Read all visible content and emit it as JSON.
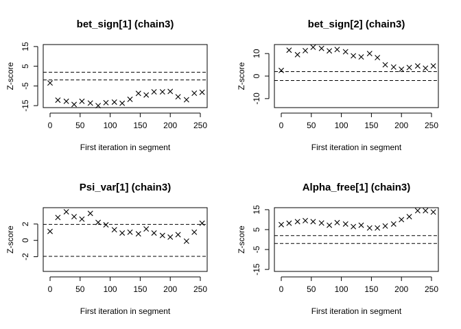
{
  "chart_data": [
    {
      "type": "scatter",
      "title": "bet_sign[1] (chain3)",
      "xlabel": "First iteration in segment",
      "ylabel": "Z-score",
      "xlim": [
        0,
        250
      ],
      "ylim": [
        -16,
        16
      ],
      "xticks": [
        0,
        50,
        100,
        150,
        200,
        250
      ],
      "yticks": [
        -15,
        -5,
        5,
        15
      ],
      "reference_lines": [
        1.96,
        -1.96
      ],
      "x": [
        0,
        13,
        27,
        40,
        53,
        67,
        80,
        93,
        107,
        120,
        133,
        147,
        160,
        173,
        187,
        200,
        213,
        227,
        240,
        253
      ],
      "y": [
        -3.5,
        -12.2,
        -12.8,
        -14.4,
        -12.8,
        -13.7,
        -15.0,
        -13.5,
        -13.2,
        -13.8,
        -11.8,
        -8.8,
        -9.6,
        -8.0,
        -8.0,
        -7.8,
        -10.5,
        -12.0,
        -8.7,
        -8.2
      ],
      "marker": "x"
    },
    {
      "type": "scatter",
      "title": "bet_sign[2] (chain3)",
      "xlabel": "First iteration in segment",
      "ylabel": "Z-score",
      "xlim": [
        0,
        250
      ],
      "ylim": [
        -14,
        14
      ],
      "xticks": [
        0,
        50,
        100,
        150,
        200,
        250
      ],
      "yticks": [
        -10,
        0,
        10
      ],
      "reference_lines": [
        1.96,
        -1.96
      ],
      "x": [
        0,
        13,
        27,
        40,
        53,
        67,
        80,
        93,
        107,
        120,
        133,
        147,
        160,
        173,
        187,
        200,
        213,
        227,
        240,
        253
      ],
      "y": [
        2.5,
        11.5,
        9.5,
        11.3,
        12.8,
        12.3,
        11.2,
        11.8,
        10.8,
        9.0,
        8.5,
        10.0,
        8.2,
        5.0,
        4.0,
        3.0,
        3.8,
        4.5,
        3.5,
        4.5
      ],
      "marker": "x"
    },
    {
      "type": "scatter",
      "title": "Psi_var[1] (chain3)",
      "xlabel": "First iteration in segment",
      "ylabel": "Z-score",
      "xlim": [
        0,
        250
      ],
      "ylim": [
        -3.8,
        4.0
      ],
      "xticks": [
        0,
        50,
        100,
        150,
        200,
        250
      ],
      "yticks": [
        -2,
        0,
        2
      ],
      "reference_lines": [
        1.96,
        -1.96
      ],
      "x": [
        0,
        13,
        27,
        40,
        53,
        67,
        80,
        93,
        107,
        120,
        133,
        147,
        160,
        173,
        187,
        200,
        213,
        227,
        240,
        253
      ],
      "y": [
        1.1,
        2.8,
        3.5,
        2.9,
        2.6,
        3.3,
        2.2,
        1.9,
        1.3,
        0.9,
        1.0,
        0.8,
        1.4,
        0.9,
        0.6,
        0.4,
        0.7,
        -0.1,
        1.0,
        2.1
      ],
      "marker": "x"
    },
    {
      "type": "scatter",
      "title": "Alpha_free[1] (chain3)",
      "xlabel": "First iteration in segment",
      "ylabel": "Z-score",
      "xlim": [
        0,
        250
      ],
      "ylim": [
        -16,
        16
      ],
      "xticks": [
        0,
        50,
        100,
        150,
        200,
        250
      ],
      "yticks": [
        -15,
        -5,
        5,
        15
      ],
      "reference_lines": [
        1.96,
        -1.96
      ],
      "x": [
        0,
        13,
        27,
        40,
        53,
        67,
        80,
        93,
        107,
        120,
        133,
        147,
        160,
        173,
        187,
        200,
        213,
        227,
        240,
        253
      ],
      "y": [
        7.5,
        8.2,
        9.0,
        9.5,
        9.0,
        8.3,
        7.2,
        8.5,
        7.8,
        6.5,
        7.2,
        5.8,
        5.8,
        6.8,
        7.8,
        10.0,
        11.5,
        14.5,
        14.5,
        13.8
      ],
      "marker": "x"
    }
  ]
}
